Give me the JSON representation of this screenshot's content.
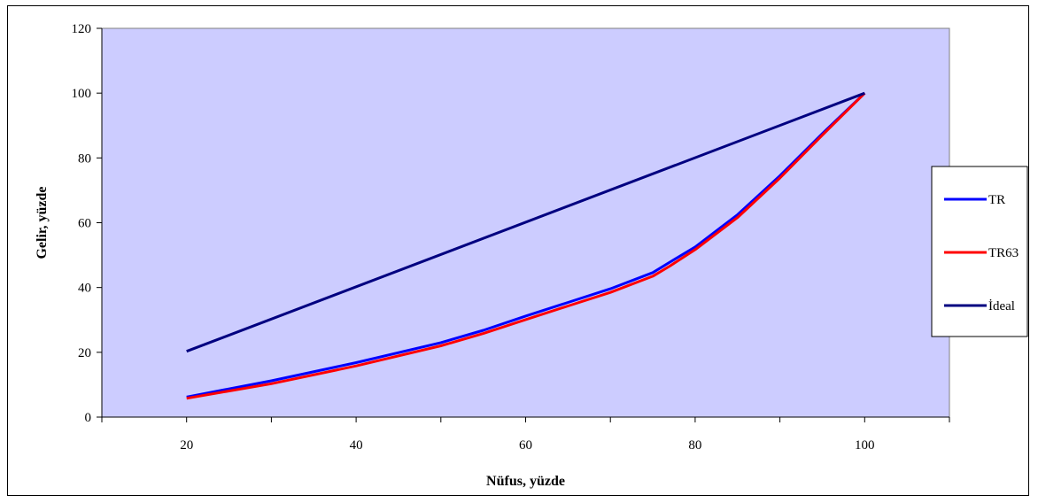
{
  "chart_data": {
    "type": "line",
    "title": "",
    "xlabel": "Nüfus, yüzde",
    "ylabel": "Gelir, yüzde",
    "xlim": [
      10,
      110
    ],
    "ylim": [
      0,
      120
    ],
    "xticks": [
      20,
      40,
      60,
      80,
      100
    ],
    "yticks": [
      0,
      20,
      40,
      60,
      80,
      100,
      120
    ],
    "grid": false,
    "legend_position": "right",
    "plot_background": "#ccccff",
    "series": [
      {
        "name": "TR",
        "color": "#0000ff",
        "x": [
          20,
          30,
          40,
          50,
          55,
          60,
          65,
          70,
          75,
          77,
          80,
          85,
          90,
          95,
          100
        ],
        "y": [
          6.2,
          11.2,
          16.8,
          23.0,
          26.8,
          31.2,
          35.4,
          39.6,
          44.6,
          47.8,
          52.5,
          62.5,
          74.5,
          87.5,
          100
        ]
      },
      {
        "name": "TR63",
        "color": "#ff0000",
        "x": [
          20,
          30,
          40,
          50,
          55,
          60,
          65,
          70,
          75,
          77,
          80,
          85,
          90,
          95,
          100
        ],
        "y": [
          5.8,
          10.3,
          15.8,
          22.0,
          25.8,
          30.1,
          34.3,
          38.5,
          43.5,
          46.6,
          51.7,
          61.6,
          73.8,
          87.0,
          100
        ]
      },
      {
        "name": "İdeal",
        "color": "#000080",
        "x": [
          20,
          100
        ],
        "y": [
          20.3,
          100
        ]
      }
    ]
  }
}
